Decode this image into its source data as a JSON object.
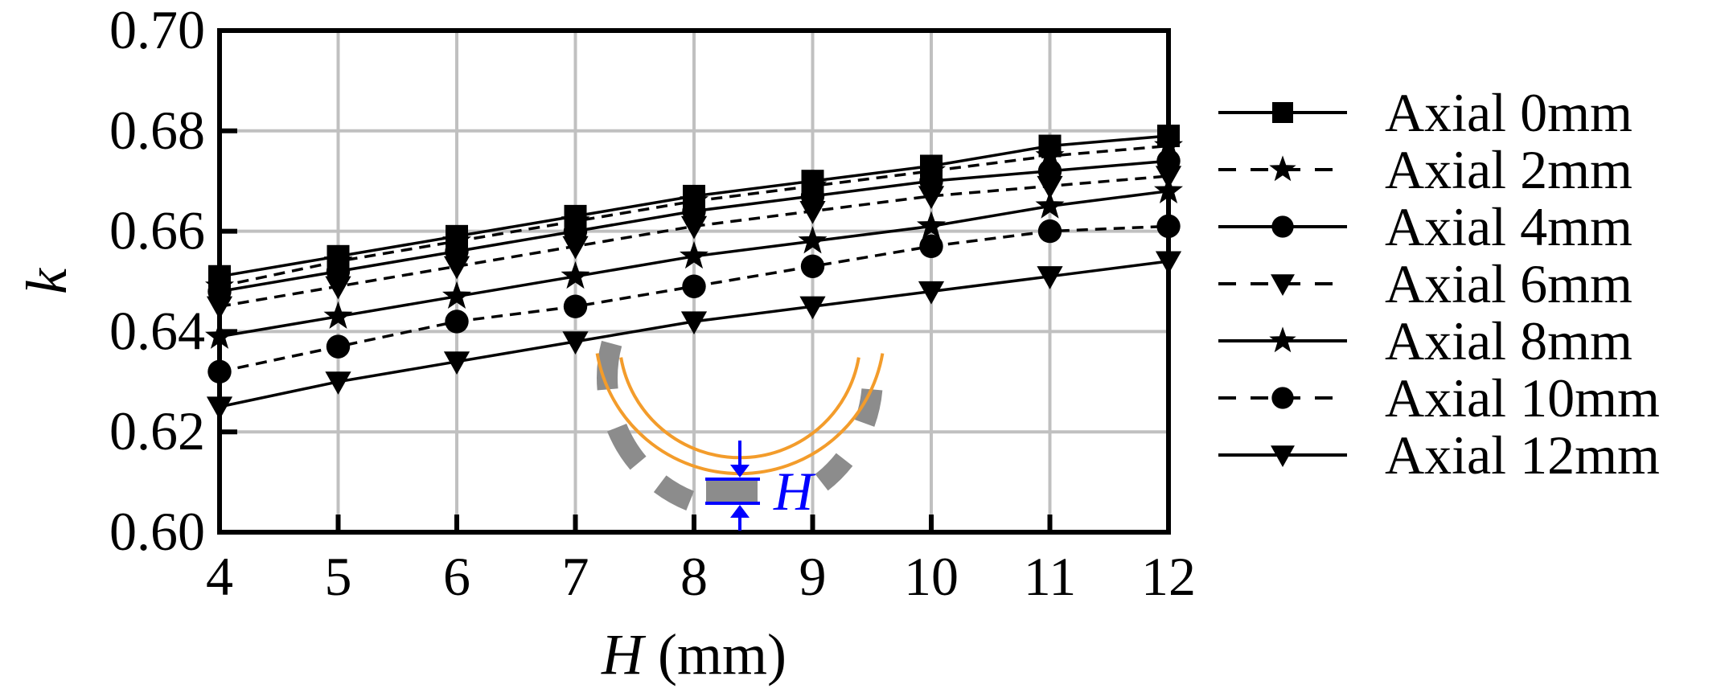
{
  "chart_data": {
    "type": "line",
    "xlabel_var": "H",
    "xlabel_unit": " (mm)",
    "ylabel": "k",
    "x": [
      4,
      5,
      6,
      7,
      8,
      9,
      10,
      11,
      12
    ],
    "xlim": [
      4,
      12
    ],
    "ylim": [
      0.6,
      0.7
    ],
    "x_ticks": [
      "4",
      "5",
      "6",
      "7",
      "8",
      "9",
      "10",
      "11",
      "12"
    ],
    "y_ticks": [
      "0.60",
      "0.62",
      "0.64",
      "0.66",
      "0.68",
      "0.70"
    ],
    "grid": true,
    "legend_position": "right",
    "series": [
      {
        "name": "Axial 0mm",
        "marker": "square",
        "dash": "solid",
        "values": [
          0.651,
          0.655,
          0.659,
          0.663,
          0.667,
          0.67,
          0.673,
          0.677,
          0.679
        ]
      },
      {
        "name": "Axial 2mm",
        "marker": "star",
        "dash": "dashed",
        "values": [
          0.649,
          0.654,
          0.658,
          0.662,
          0.666,
          0.669,
          0.672,
          0.675,
          0.677
        ]
      },
      {
        "name": "Axial 4mm",
        "marker": "circle",
        "dash": "solid",
        "values": [
          0.648,
          0.652,
          0.656,
          0.66,
          0.664,
          0.667,
          0.67,
          0.672,
          0.674
        ]
      },
      {
        "name": "Axial 6mm",
        "marker": "triangle-down",
        "dash": "dashed",
        "values": [
          0.645,
          0.649,
          0.653,
          0.657,
          0.661,
          0.664,
          0.667,
          0.669,
          0.671
        ]
      },
      {
        "name": "Axial 8mm",
        "marker": "star",
        "dash": "solid",
        "values": [
          0.639,
          0.643,
          0.647,
          0.651,
          0.655,
          0.658,
          0.661,
          0.665,
          0.668
        ]
      },
      {
        "name": "Axial 10mm",
        "marker": "circle",
        "dash": "dashed",
        "values": [
          0.632,
          0.637,
          0.642,
          0.645,
          0.649,
          0.653,
          0.657,
          0.66,
          0.661
        ]
      },
      {
        "name": "Axial 12mm",
        "marker": "triangle-down",
        "dash": "solid",
        "values": [
          0.625,
          0.63,
          0.634,
          0.638,
          0.642,
          0.645,
          0.648,
          0.651,
          0.654
        ]
      }
    ],
    "inset": {
      "label": "H",
      "ring_color": "#f39c2b",
      "block_color": "#8c8c8c",
      "arrow_color": "#0000ff"
    }
  }
}
